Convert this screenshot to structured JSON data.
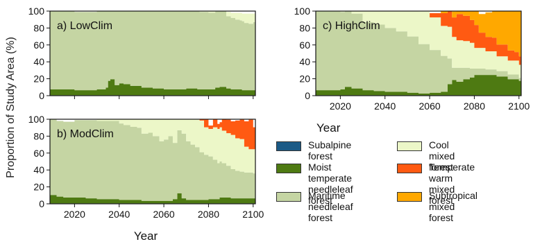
{
  "figure": {
    "ylabel": "Proportion of Study Area (%)",
    "xlabel": "Year"
  },
  "colors": {
    "subalpine": "#1b5a86",
    "moist": "#4e7a12",
    "maritime": "#c5d5a3",
    "cool": "#ecf7c8",
    "temperate_warm": "#ff5a12",
    "subtropical": "#ffa800"
  },
  "legend": [
    {
      "key": "subalpine",
      "label": "Subalpine forest"
    },
    {
      "key": "moist",
      "label": "Moist temperate\nneedleleaf forest"
    },
    {
      "key": "maritime",
      "label": "Maritime\nneedleleaf forest"
    },
    {
      "key": "cool",
      "label": "Cool mixed forest"
    },
    {
      "key": "temperate_warm",
      "label": "Temperate warm\nmixed forest"
    },
    {
      "key": "subtropical",
      "label": "Subtropical\nmixed forest"
    }
  ],
  "chart_data": [
    {
      "type": "area",
      "panel_label": "a)  LowClim",
      "xlim": [
        2009,
        2101
      ],
      "ylim": [
        0,
        100
      ],
      "xticks": [
        2020,
        2040,
        2060,
        2080,
        2100
      ],
      "yticks": [
        0,
        20,
        40,
        60,
        80,
        100
      ],
      "xlabel": "",
      "show_x_ticklabels": false,
      "series": [
        {
          "key": "subalpine",
          "x": [
            2009,
            2030,
            2050,
            2070,
            2090,
            2101
          ],
          "values": [
            0.5,
            0.5,
            0.5,
            0.5,
            0.5,
            0.5
          ]
        },
        {
          "key": "moist",
          "x": [
            2009,
            2015,
            2020,
            2025,
            2030,
            2034,
            2035,
            2036,
            2038,
            2040,
            2042,
            2045,
            2050,
            2055,
            2060,
            2065,
            2070,
            2075,
            2080,
            2083,
            2085,
            2088,
            2090,
            2095,
            2100,
            2101
          ],
          "values": [
            7,
            7,
            6,
            6,
            7,
            9,
            17,
            19,
            12,
            14,
            13,
            11,
            9,
            8,
            7,
            7,
            8,
            7,
            7,
            9,
            10,
            8,
            7,
            6,
            6,
            6
          ]
        },
        {
          "key": "maritime",
          "x": [
            2009,
            2070,
            2076,
            2080,
            2085,
            2088,
            2090,
            2092,
            2094,
            2096,
            2098,
            2100,
            2101
          ],
          "values": [
            92.5,
            92.5,
            91.5,
            90.5,
            89.5,
            85.5,
            84.5,
            82.5,
            81.5,
            79.5,
            78.5,
            80.5,
            80.5
          ]
        },
        {
          "key": "cool",
          "x": [
            2009,
            2070,
            2076,
            2080,
            2085,
            2088,
            2090,
            2092,
            2094,
            2096,
            2098,
            2100,
            2101
          ],
          "values": [
            0,
            0,
            1,
            2,
            3,
            5,
            6,
            8,
            9,
            11,
            12,
            10,
            10
          ]
        }
      ]
    },
    {
      "type": "area",
      "panel_label": "b)  ModClim",
      "xlim": [
        2009,
        2101
      ],
      "ylim": [
        0,
        100
      ],
      "xticks": [
        2020,
        2040,
        2060,
        2080,
        2100
      ],
      "yticks": [
        0,
        20,
        40,
        60,
        80,
        100
      ],
      "xlabel": "Year",
      "show_x_ticklabels": true,
      "series": [
        {
          "key": "subalpine",
          "x": [
            2009,
            2030,
            2050,
            2070,
            2090,
            2101
          ],
          "values": [
            0.5,
            0.5,
            0.5,
            0.5,
            0.5,
            0.5
          ]
        },
        {
          "key": "moist",
          "x": [
            2009,
            2012,
            2015,
            2020,
            2025,
            2030,
            2035,
            2040,
            2045,
            2050,
            2055,
            2060,
            2064,
            2066,
            2068,
            2070,
            2075,
            2080,
            2085,
            2090,
            2095,
            2100,
            2101
          ],
          "values": [
            10,
            8,
            7,
            7,
            6,
            5,
            5,
            4,
            4,
            3,
            3,
            3,
            5,
            12,
            6,
            4,
            4,
            5,
            7,
            6,
            6,
            6,
            6
          ]
        },
        {
          "key": "maritime",
          "x": [
            2009,
            2020,
            2025,
            2030,
            2035,
            2040,
            2042,
            2045,
            2048,
            2050,
            2053,
            2055,
            2058,
            2060,
            2062,
            2064,
            2066,
            2068,
            2070,
            2072,
            2074,
            2076,
            2078,
            2080,
            2082,
            2084,
            2086,
            2088,
            2090,
            2092,
            2094,
            2096,
            2098,
            2100,
            2101
          ],
          "values": [
            89.5,
            91.5,
            92.5,
            92.5,
            92.5,
            90.5,
            88.5,
            86.5,
            85.5,
            79.5,
            80.5,
            76.5,
            70.5,
            72.5,
            76.5,
            66.5,
            74.5,
            76.5,
            69.5,
            65.5,
            62.5,
            56.5,
            53.5,
            50.5,
            46.5,
            42.5,
            40.5,
            37.5,
            34.5,
            32.5,
            31.5,
            30.5,
            30.5,
            29.5,
            29.5
          ]
        },
        {
          "key": "cool",
          "x": [
            2009,
            2020,
            2025,
            2030,
            2035,
            2040,
            2042,
            2045,
            2048,
            2050,
            2053,
            2055,
            2058,
            2060,
            2062,
            2064,
            2066,
            2068,
            2070,
            2072,
            2074,
            2076,
            2078,
            2080,
            2082,
            2084,
            2086,
            2088,
            2090,
            2092,
            2094,
            2096,
            2098,
            2100,
            2101
          ],
          "values": [
            0,
            0,
            0,
            2,
            2,
            5.5,
            7.5,
            9.5,
            11.5,
            16.5,
            16.5,
            20.5,
            26.5,
            24.5,
            20.5,
            30.5,
            19.5,
            17.5,
            26.5,
            30.5,
            33.5,
            37.5,
            32.5,
            32.5,
            38.5,
            40.5,
            38.5,
            38.5,
            40.5,
            38.5,
            38.5,
            30.5,
            27.5,
            28.5,
            28.5
          ]
        },
        {
          "key": "temperate_warm",
          "x": [
            2009,
            2074,
            2076,
            2078,
            2080,
            2082,
            2084,
            2086,
            2088,
            2090,
            2092,
            2094,
            2096,
            2098,
            2100,
            2101
          ],
          "values": [
            0,
            0,
            5,
            12,
            4,
            10,
            6,
            14,
            16,
            16,
            21,
            23,
            30,
            35,
            26,
            26
          ]
        }
      ]
    },
    {
      "type": "area",
      "panel_label": "c)  HighClim",
      "xlim": [
        2009,
        2101
      ],
      "ylim": [
        0,
        100
      ],
      "xticks": [
        2020,
        2040,
        2060,
        2080,
        2100
      ],
      "yticks": [
        0,
        20,
        40,
        60,
        80,
        100
      ],
      "xlabel": "Year",
      "show_x_ticklabels": true,
      "series": [
        {
          "key": "subalpine",
          "x": [
            2009,
            2030,
            2050,
            2070,
            2090,
            2101
          ],
          "values": [
            0.5,
            0.5,
            0.5,
            0.5,
            0.5,
            0.5
          ]
        },
        {
          "key": "moist",
          "x": [
            2009,
            2015,
            2020,
            2022,
            2025,
            2030,
            2035,
            2040,
            2045,
            2050,
            2055,
            2060,
            2065,
            2066,
            2068,
            2070,
            2072,
            2075,
            2078,
            2080,
            2085,
            2090,
            2095,
            2100,
            2101
          ],
          "values": [
            6,
            6,
            7,
            10,
            8,
            6,
            5,
            4,
            4,
            3,
            2,
            3,
            4,
            4,
            13,
            18,
            16,
            19,
            21,
            24,
            24,
            22,
            19,
            17,
            17
          ]
        },
        {
          "key": "maritime",
          "x": [
            2009,
            2020,
            2025,
            2030,
            2035,
            2040,
            2045,
            2050,
            2055,
            2060,
            2065,
            2068,
            2070,
            2072,
            2075,
            2078,
            2080,
            2085,
            2090,
            2095,
            2100,
            2101
          ],
          "values": [
            93.5,
            91.5,
            88.5,
            80.5,
            78.5,
            75.5,
            71.5,
            66.5,
            58.5,
            50.5,
            42.5,
            30.5,
            14.5,
            16.5,
            13.5,
            10.5,
            7.5,
            6.5,
            6.5,
            5.5,
            3.5,
            3.5
          ]
        },
        {
          "key": "cool",
          "x": [
            2009,
            2020,
            2025,
            2030,
            2035,
            2040,
            2045,
            2050,
            2055,
            2060,
            2065,
            2068,
            2070,
            2072,
            2075,
            2078,
            2080,
            2085,
            2090,
            2095,
            2100,
            2101
          ],
          "values": [
            0,
            2,
            4.5,
            13.5,
            16.5,
            20.5,
            24.5,
            30.5,
            38.5,
            38.5,
            35.5,
            37.5,
            36.5,
            32.5,
            31.5,
            30.5,
            24.5,
            21.5,
            17.5,
            16.5,
            15.5,
            15.5
          ]
        },
        {
          "key": "temperate_warm",
          "x": [
            2009,
            2055,
            2060,
            2065,
            2068,
            2070,
            2072,
            2075,
            2078,
            2080,
            2082,
            2085,
            2088,
            2090,
            2092,
            2095,
            2098,
            2100,
            2101
          ],
          "values": [
            0,
            0,
            5,
            15,
            20,
            23,
            31,
            30,
            27,
            27,
            18,
            17,
            16,
            14,
            14,
            12,
            10,
            10,
            10
          ]
        },
        {
          "key": "subtropical",
          "x": [
            2009,
            2062,
            2065,
            2068,
            2070,
            2072,
            2075,
            2078,
            2080,
            2082,
            2085,
            2088,
            2090,
            2092,
            2095,
            2098,
            2100,
            2101
          ],
          "values": [
            0,
            0,
            3,
            3,
            7,
            7,
            11,
            12,
            17,
            22,
            29,
            34,
            41,
            43,
            47,
            52,
            55,
            55
          ]
        }
      ]
    }
  ]
}
